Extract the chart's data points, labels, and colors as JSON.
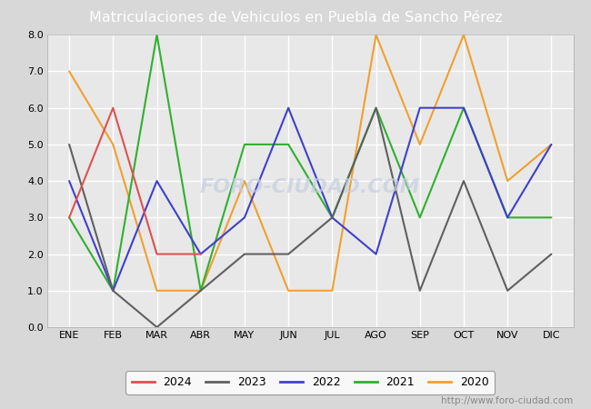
{
  "title": "Matriculaciones de Vehiculos en Puebla de Sancho Pérez",
  "title_bg_color": "#5b87d0",
  "title_text_color": "#ffffff",
  "months": [
    "ENE",
    "FEB",
    "MAR",
    "ABR",
    "MAY",
    "JUN",
    "JUL",
    "AGO",
    "SEP",
    "OCT",
    "NOV",
    "DIC"
  ],
  "series": {
    "2024": {
      "color": "#e05050",
      "data": [
        3,
        6,
        2,
        2,
        null,
        null,
        null,
        null,
        null,
        null,
        null,
        null
      ]
    },
    "2023": {
      "color": "#606060",
      "data": [
        5,
        1,
        0,
        1,
        2,
        2,
        3,
        6,
        1,
        4,
        1,
        2
      ]
    },
    "2022": {
      "color": "#4040cc",
      "data": [
        4,
        1,
        4,
        2,
        3,
        6,
        3,
        2,
        6,
        6,
        3,
        5
      ]
    },
    "2021": {
      "color": "#30b030",
      "data": [
        3,
        1,
        8,
        1,
        5,
        5,
        3,
        6,
        3,
        6,
        3,
        3
      ]
    },
    "2020": {
      "color": "#f0a030",
      "data": [
        7,
        5,
        1,
        1,
        4,
        1,
        1,
        8,
        5,
        8,
        4,
        5
      ]
    }
  },
  "ylim": [
    0,
    8.0
  ],
  "yticks": [
    0.0,
    1.0,
    2.0,
    3.0,
    4.0,
    5.0,
    6.0,
    7.0,
    8.0
  ],
  "bg_color": "#d8d8d8",
  "plot_bg_color": "#e8e8e8",
  "below_plot_color": "#ffffff",
  "grid_color": "#ffffff",
  "legend_order": [
    "2024",
    "2023",
    "2022",
    "2021",
    "2020"
  ],
  "watermark_text": "FORO-CIUDAD.COM",
  "watermark_color": "#c5cfe0",
  "watermark_alpha": 0.7,
  "url_text": "http://www.foro-ciudad.com",
  "url_color": "#888888",
  "line_width": 1.5
}
